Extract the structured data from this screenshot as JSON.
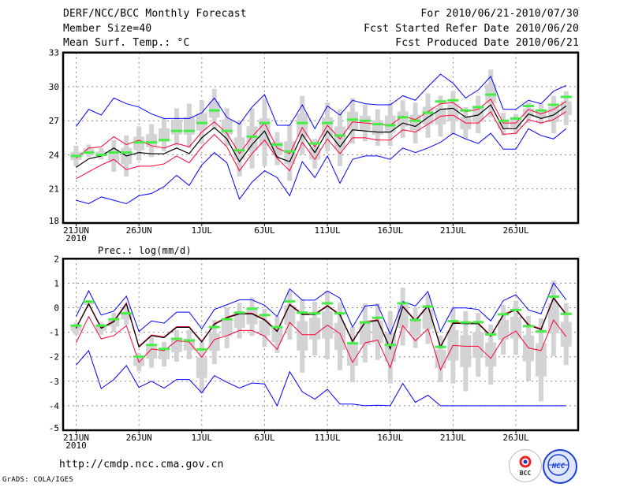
{
  "header": {
    "title": "DERF/NCC/BCC Monthly Forecast",
    "member_size": "Member Size=40",
    "variable": "Mean Surf. Temp.: °C",
    "period": "For 2010/06/21-2010/07/30",
    "started": "Fcst Started Refer Date 2010/06/20",
    "produced": "Fcst Produced Date 2010/06/21"
  },
  "footer": {
    "url": "http://cmdp.ncc.cma.gov.cn",
    "credit": "GrADS: COLA/IGES",
    "logo_left": "BCC",
    "logo_right": "NCC"
  },
  "colors": {
    "max_min": "#0000ff",
    "spread": "#ff0033",
    "mean": "#000000",
    "median": "#44ee44",
    "box": "#d3d3d6",
    "grid": "#888888"
  },
  "chart_data": [
    {
      "type": "line",
      "title": "Mean Surf. Temp.: °C",
      "ylim": [
        18,
        33
      ],
      "yticks": [
        "18",
        "21",
        "24",
        "27",
        "30",
        "33"
      ],
      "xticks": [
        {
          "day": 0,
          "label": "21JUN",
          "sub": "2010"
        },
        {
          "day": 5,
          "label": "26JUN"
        },
        {
          "day": 10,
          "label": "1JUL"
        },
        {
          "day": 15,
          "label": "6JUL"
        },
        {
          "day": 20,
          "label": "11JUL"
        },
        {
          "day": 25,
          "label": "16JUL"
        },
        {
          "day": 30,
          "label": "21JUL"
        },
        {
          "day": 35,
          "label": "26JUL"
        }
      ],
      "grid": true,
      "mean": [
        22.9,
        23.65,
        23.9,
        24.6,
        23.9,
        24.2,
        24.1,
        24.1,
        24.6,
        24.1,
        25.5,
        26.4,
        25.4,
        23.4,
        24.9,
        26.1,
        23.8,
        23.4,
        25.8,
        24.2,
        26.1,
        24.7,
        26.2,
        26.1,
        26.0,
        26.0,
        26.8,
        26.5,
        27.3,
        28.0,
        28.1,
        27.3,
        27.5,
        28.4,
        26.3,
        26.3,
        27.6,
        27.2,
        27.5,
        28.3
      ],
      "spread_upper": [
        23.7,
        24.6,
        24.7,
        25.6,
        24.9,
        25.3,
        24.8,
        24.6,
        25.0,
        24.7,
        26.0,
        26.9,
        25.9,
        24.1,
        25.6,
        26.8,
        24.6,
        24.1,
        26.4,
        24.7,
        26.6,
        25.4,
        26.9,
        26.8,
        26.7,
        26.6,
        27.4,
        27.1,
        27.8,
        28.5,
        28.6,
        27.8,
        28.0,
        28.9,
        26.8,
        26.8,
        28.0,
        27.6,
        28.0,
        28.7
      ],
      "spread_lower": [
        21.9,
        22.5,
        23.1,
        23.6,
        22.7,
        23.0,
        23.0,
        23.2,
        23.9,
        23.3,
        24.7,
        25.8,
        24.7,
        22.6,
        24.1,
        25.3,
        23.7,
        22.6,
        25.1,
        23.6,
        25.4,
        24.1,
        25.5,
        25.5,
        25.3,
        25.3,
        26.2,
        26.0,
        26.7,
        27.4,
        27.5,
        26.8,
        26.8,
        27.8,
        25.8,
        25.9,
        27.1,
        26.8,
        27.1,
        27.8
      ],
      "max": [
        26.5,
        28.0,
        27.5,
        29.0,
        28.5,
        28.2,
        27.6,
        27.2,
        27.2,
        27.2,
        27.7,
        29.0,
        27.3,
        26.7,
        28.2,
        29.3,
        26.6,
        26.6,
        28.4,
        26.3,
        28.3,
        27.5,
        28.8,
        28.5,
        28.4,
        28.4,
        29.2,
        28.8,
        30.0,
        31.1,
        30.3,
        29.0,
        29.7,
        30.9,
        28.0,
        28.0,
        28.8,
        28.5,
        29.6,
        30.1
      ],
      "min": [
        20.0,
        19.7,
        20.3,
        20.0,
        19.7,
        20.4,
        20.6,
        21.2,
        22.2,
        21.3,
        23.1,
        24.2,
        23.3,
        20.1,
        21.6,
        22.6,
        22.0,
        20.4,
        23.4,
        22.0,
        23.9,
        21.5,
        23.6,
        23.9,
        23.9,
        23.6,
        24.6,
        24.2,
        24.6,
        25.1,
        25.9,
        25.4,
        25.0,
        25.9,
        24.5,
        24.5,
        26.3,
        25.7,
        25.4,
        26.3
      ],
      "median": [
        23.9,
        24.2,
        24.0,
        24.2,
        24.2,
        25.1,
        25.1,
        25.3,
        26.1,
        26.1,
        26.8,
        27.9,
        26.1,
        24.4,
        25.6,
        26.8,
        24.9,
        24.3,
        26.8,
        25.0,
        26.8,
        25.7,
        27.1,
        27.0,
        26.7,
        26.6,
        27.3,
        27.0,
        27.7,
        28.7,
        28.8,
        27.9,
        28.2,
        29.3,
        27.0,
        27.2,
        28.3,
        27.9,
        28.4,
        29.1
      ],
      "range_lo": [
        23.0,
        23.8,
        23.6,
        22.5,
        22.1,
        23.5,
        23.8,
        24.3,
        24.8,
        24.6,
        25.0,
        26.2,
        24.8,
        22.1,
        22.8,
        23.0,
        23.1,
        21.7,
        24.0,
        22.8,
        24.3,
        23.0,
        25.0,
        25.2,
        24.8,
        24.8,
        25.5,
        25.0,
        25.5,
        25.6,
        25.8,
        25.4,
        25.9,
        27.3,
        25.7,
        25.9,
        26.8,
        26.7,
        25.9,
        26.6
      ],
      "range_hi": [
        24.8,
        24.9,
        24.6,
        25.3,
        25.7,
        26.5,
        26.7,
        27.2,
        28.1,
        28.5,
        28.8,
        29.8,
        28.1,
        27.0,
        28.1,
        29.0,
        26.0,
        26.7,
        29.2,
        25.4,
        28.6,
        28.0,
        29.0,
        28.4,
        28.0,
        28.6,
        28.8,
        28.6,
        29.4,
        29.2,
        29.6,
        28.2,
        29.2,
        31.5,
        27.7,
        27.6,
        28.6,
        28.5,
        29.2,
        29.6
      ]
    },
    {
      "type": "line",
      "title": "Prec.: log(mm/d)",
      "ylim": [
        -5,
        2
      ],
      "yticks": [
        "-5",
        "-4",
        "-3",
        "-2",
        "-1",
        "0",
        "1",
        "2"
      ],
      "xticks": [
        {
          "day": 0,
          "label": "21JUN",
          "sub": "2010"
        },
        {
          "day": 5,
          "label": "26JUN"
        },
        {
          "day": 10,
          "label": "1JUL"
        },
        {
          "day": 15,
          "label": "6JUL"
        },
        {
          "day": 20,
          "label": "11JUL"
        },
        {
          "day": 25,
          "label": "16JUL"
        },
        {
          "day": 30,
          "label": "21JUL"
        },
        {
          "day": 35,
          "label": "26JUL"
        }
      ],
      "grid": true,
      "mean": [
        -0.84,
        0.15,
        -0.84,
        -0.57,
        0.15,
        -1.6,
        -1.14,
        -1.22,
        -0.8,
        -0.8,
        -1.4,
        -0.68,
        -0.41,
        -0.25,
        -0.25,
        -0.5,
        -0.97,
        0.12,
        -0.28,
        -0.28,
        0.07,
        -0.3,
        -1.38,
        -0.6,
        -0.52,
        -1.68,
        0.04,
        -0.54,
        0.07,
        -1.61,
        -0.63,
        -0.65,
        -0.65,
        -1.16,
        -0.3,
        -0.09,
        -0.71,
        -0.89,
        0.39,
        -0.28
      ],
      "spread_upper": [
        -0.81,
        0.18,
        -0.81,
        -0.54,
        0.2,
        -1.57,
        -1.11,
        -1.19,
        -0.77,
        -0.77,
        -1.37,
        -0.65,
        -0.38,
        -0.22,
        -0.22,
        -0.47,
        -0.94,
        0.15,
        -0.25,
        -0.25,
        0.1,
        -0.27,
        -1.35,
        -0.57,
        -0.49,
        -1.65,
        0.07,
        -0.51,
        0.1,
        -1.58,
        -0.6,
        -0.62,
        -0.62,
        -1.13,
        -0.27,
        -0.06,
        -0.68,
        -0.86,
        0.42,
        -0.25
      ],
      "spread_lower": [
        -1.43,
        -0.36,
        -1.27,
        -1.14,
        -0.73,
        -2.23,
        -1.68,
        -1.75,
        -1.35,
        -1.4,
        -2.02,
        -1.3,
        -1.14,
        -0.93,
        -0.93,
        -1.16,
        -1.7,
        -0.6,
        -1.1,
        -1.1,
        -0.71,
        -1.05,
        -2.23,
        -1.43,
        -1.32,
        -2.45,
        -0.73,
        -1.35,
        -0.86,
        -2.53,
        -1.54,
        -1.57,
        -1.57,
        -2.07,
        -1.25,
        -0.95,
        -1.64,
        -1.75,
        -0.5,
        -1.18
      ],
      "max": [
        -0.36,
        0.69,
        -0.3,
        -0.14,
        0.47,
        -0.97,
        -0.54,
        -0.63,
        -0.18,
        -0.18,
        -0.86,
        -0.07,
        0.12,
        0.32,
        0.32,
        0.1,
        -0.36,
        0.77,
        0.31,
        0.31,
        0.68,
        0.39,
        -0.79,
        0.07,
        0.12,
        -1.08,
        0.25,
        0.07,
        0.66,
        -0.97,
        -0.01,
        -0.01,
        -0.07,
        -0.54,
        0.29,
        0.53,
        -0.09,
        -0.25,
        1.01,
        0.32
      ],
      "min": [
        -2.34,
        -1.75,
        -3.3,
        -2.93,
        -2.36,
        -3.25,
        -3.0,
        -3.28,
        -2.93,
        -2.93,
        -3.47,
        -2.77,
        -3.04,
        -3.28,
        -3.07,
        -3.11,
        -4.0,
        -2.61,
        -3.43,
        -3.73,
        -3.33,
        -3.93,
        -3.93,
        -4.0,
        -3.98,
        -4.0,
        -3.09,
        -3.86,
        -3.57,
        -4.0,
        -4.0,
        -4.0,
        -4.0,
        -4.0,
        -4.0,
        -4.0,
        -4.0,
        -4.0,
        -4.0,
        -4.0
      ],
      "median": [
        -0.73,
        0.25,
        -0.73,
        -0.47,
        -0.23,
        -2.0,
        -1.52,
        -1.68,
        -1.27,
        -1.34,
        -1.7,
        -0.79,
        -0.47,
        -0.2,
        -0.04,
        -0.3,
        -0.79,
        0.26,
        -0.2,
        -0.23,
        0.18,
        -0.23,
        -1.45,
        -0.6,
        -0.41,
        -1.52,
        0.18,
        -0.5,
        0.05,
        -1.6,
        -0.55,
        -0.6,
        -0.59,
        -1.09,
        -0.27,
        -0.09,
        -0.75,
        -0.97,
        0.45,
        -0.25
      ],
      "range_lo": [
        -1.1,
        0.05,
        -1.1,
        -1.0,
        -0.7,
        -2.6,
        -2.45,
        -2.4,
        -2.2,
        -2.1,
        -3.5,
        -2.3,
        -1.65,
        -1.25,
        -1.15,
        -1.6,
        -1.85,
        -1.3,
        -2.65,
        -1.95,
        -2.1,
        -2.55,
        -3.04,
        -2.23,
        -2.13,
        -3.09,
        -1.54,
        -1.64,
        -1.48,
        -3.04,
        -3.09,
        -3.41,
        -2.82,
        -3.14,
        -1.92,
        -1.92,
        -2.98,
        -3.82,
        -1.97,
        -2.34
      ],
      "range_hi": [
        -0.6,
        0.3,
        -0.6,
        -0.2,
        0.05,
        -1.85,
        -1.2,
        -1.4,
        -0.9,
        -0.9,
        -1.4,
        -0.5,
        0.0,
        0.2,
        0.42,
        -0.05,
        -0.35,
        0.7,
        0.35,
        0.25,
        0.7,
        0.2,
        -0.79,
        0.18,
        0.18,
        -0.14,
        0.82,
        0.02,
        0.55,
        -1.14,
        0.02,
        -0.14,
        -0.22,
        -0.68,
        0.12,
        0.29,
        -0.33,
        -0.43,
        1.11,
        0.18
      ]
    }
  ]
}
